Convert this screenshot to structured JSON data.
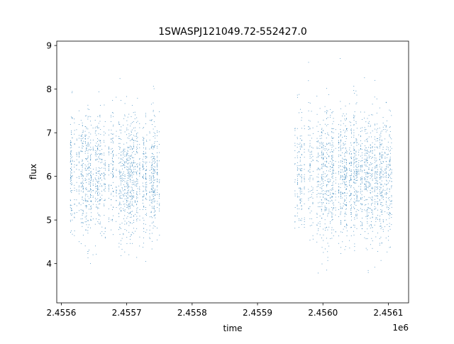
{
  "chart_data": {
    "type": "scatter",
    "title": "1SWASPJ121049.72-552427.0",
    "xlabel": "time",
    "ylabel": "flux",
    "x_offset_label": "1e6",
    "xlim": [
      2455593,
      2456131
    ],
    "ylim": [
      3.1,
      9.1
    ],
    "x_ticks": [
      2455600,
      2455700,
      2455800,
      2455900,
      2456000,
      2456100
    ],
    "x_tick_labels": [
      "2.4556",
      "2.4557",
      "2.4558",
      "2.4559",
      "2.4560",
      "2.4561"
    ],
    "y_ticks": [
      4,
      5,
      6,
      7,
      8,
      9
    ],
    "y_tick_labels": [
      "4",
      "5",
      "6",
      "7",
      "8",
      "9"
    ],
    "grid": false,
    "legend": "none",
    "marker_color": "#1f77b4",
    "series": [
      {
        "values_summary": "dense scatter of flux measurements",
        "segments": [
          {
            "x_range": [
              2455613,
              2455751
            ],
            "flux_core": [
              4.8,
              7.3
            ],
            "flux_extremes": [
              3.4,
              8.4
            ]
          },
          {
            "x_range": [
              2455955,
              2456107
            ],
            "flux_core": [
              4.7,
              7.3
            ],
            "flux_extremes": [
              3.6,
              8.8
            ]
          }
        ]
      }
    ]
  }
}
